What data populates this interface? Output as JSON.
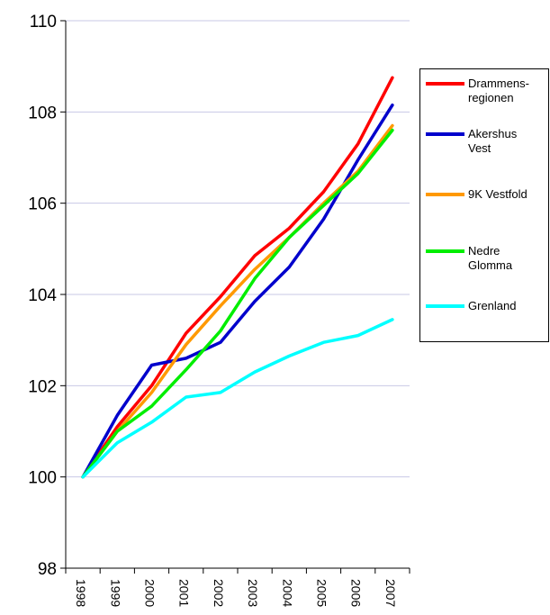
{
  "chart_data": {
    "type": "line",
    "title": "",
    "xlabel": "",
    "ylabel": "",
    "x": [
      "1998",
      "1999",
      "2000",
      "2001",
      "2002",
      "2003",
      "2004",
      "2005",
      "2006",
      "2007"
    ],
    "ylim": [
      98,
      110
    ],
    "yticks": [
      "98",
      "100",
      "102",
      "104",
      "106",
      "108",
      "110"
    ],
    "grid": true,
    "legend": "right",
    "series": [
      {
        "name": "Drammens-regionen",
        "color": "#ff0000",
        "values": [
          100.0,
          101.1,
          102.0,
          103.15,
          103.95,
          104.85,
          105.45,
          106.25,
          107.3,
          108.75
        ]
      },
      {
        "name": "Akershus Vest",
        "color": "#0000cc",
        "values": [
          100.0,
          101.35,
          102.45,
          102.6,
          102.95,
          103.85,
          104.6,
          105.65,
          106.95,
          108.15
        ]
      },
      {
        "name": "9K Vestfold",
        "color": "#ff9900",
        "values": [
          100.0,
          101.0,
          101.85,
          102.9,
          103.75,
          104.55,
          105.25,
          106.0,
          106.7,
          107.7
        ]
      },
      {
        "name": "Nedre Glomma",
        "color": "#00ee00",
        "values": [
          100.0,
          101.0,
          101.55,
          102.35,
          103.2,
          104.35,
          105.25,
          105.95,
          106.65,
          107.6
        ]
      },
      {
        "name": "Grenland",
        "color": "#00ffff",
        "values": [
          100.0,
          100.75,
          101.2,
          101.75,
          101.85,
          102.3,
          102.65,
          102.95,
          103.1,
          103.45
        ]
      }
    ],
    "legend_labels": [
      [
        "Drammens-",
        "regionen"
      ],
      [
        "Akershus",
        "Vest"
      ],
      [
        "9K Vestfold"
      ],
      [
        "Nedre",
        "Glomma"
      ],
      [
        "Grenland"
      ]
    ]
  }
}
